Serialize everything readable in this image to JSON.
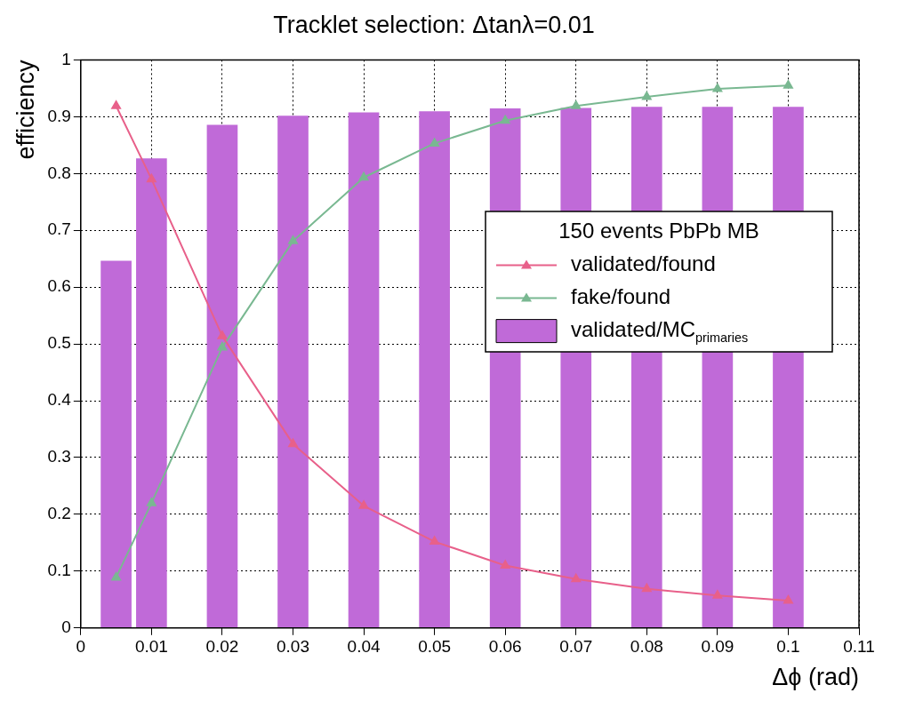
{
  "chart_data": {
    "type": "bar",
    "title": "Tracklet selection: Δtanλ=0.01",
    "xlabel": "Δϕ (rad)",
    "ylabel": "efficiency",
    "legend_title": "150 events PbPb MB",
    "x": [
      0.005,
      0.01,
      0.02,
      0.03,
      0.04,
      0.05,
      0.06,
      0.07,
      0.08,
      0.09,
      0.1
    ],
    "series": [
      {
        "name": "validated/found",
        "type": "line",
        "color": "#e8608a",
        "values": [
          0.919,
          0.79,
          0.514,
          0.324,
          0.215,
          0.152,
          0.11,
          0.086,
          0.069,
          0.057,
          0.048
        ]
      },
      {
        "name": "fake/found",
        "type": "line",
        "color": "#79b891",
        "values": [
          0.089,
          0.22,
          0.494,
          0.681,
          0.793,
          0.853,
          0.893,
          0.919,
          0.935,
          0.949,
          0.955
        ]
      },
      {
        "name": "validated/MC$_{primaries}$",
        "color": "#c06ad8",
        "values": [
          0.646,
          0.826,
          0.885,
          0.901,
          0.907,
          0.909,
          0.914,
          0.915,
          0.917,
          0.917,
          0.917
        ]
      }
    ],
    "xlim": [
      0,
      0.11
    ],
    "xticks": [
      0,
      0.01,
      0.02,
      0.03,
      0.04,
      0.05,
      0.06,
      0.07,
      0.08,
      0.09,
      0.1,
      0.11
    ],
    "ylim": [
      0,
      1
    ],
    "yticks": [
      0,
      0.1,
      0.2,
      0.3,
      0.4,
      0.5,
      0.6,
      0.7,
      0.8,
      0.9,
      1
    ],
    "grid": true,
    "legend": "right",
    "marker": "triangle",
    "line_style": "solid"
  }
}
